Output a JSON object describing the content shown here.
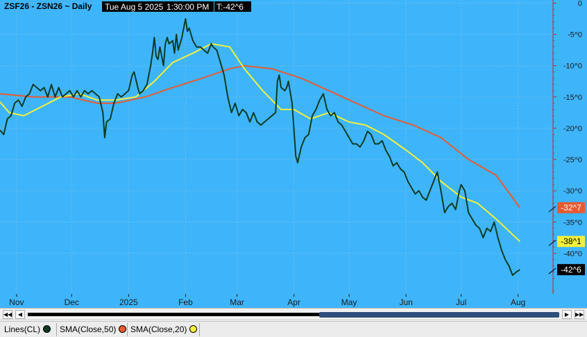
{
  "header": {
    "symbol": "ZSF26 - ZSN26 ~ Daily",
    "datetime": "Tue Aug 5 2025",
    "time": "1:30:00 PM",
    "last": "T:-42^6"
  },
  "colors": {
    "background": "#3eb5fb",
    "price_line": "#0c3a22",
    "sma50": "#e85a30",
    "sma20": "#f2f03c",
    "axis": "#cc2020",
    "axis_text": "#1a1a1a"
  },
  "scrollbar": {
    "left_icon": "double-left-arrow-icon",
    "right_icon": "double-right-arrow-icon"
  },
  "legend": [
    {
      "label": "Lines(CL)",
      "color": "#0c3a22"
    },
    {
      "label": "SMA(Close,50)",
      "color": "#e85a30"
    },
    {
      "label": "SMA(Close,20)",
      "color": "#f2f03c"
    }
  ],
  "chart_data": {
    "type": "line",
    "title": "ZSF26 - ZSN26 ~ Daily",
    "ylim": [
      -46.5,
      0.5
    ],
    "y_ticks": [
      {
        "value": 0,
        "label": "0"
      },
      {
        "value": -5,
        "label": "-5^0"
      },
      {
        "value": -10,
        "label": "-10^0"
      },
      {
        "value": -15,
        "label": "-15^0"
      },
      {
        "value": -20,
        "label": "-20^0"
      },
      {
        "value": -25,
        "label": "-25^0"
      },
      {
        "value": -30,
        "label": "-30^0"
      },
      {
        "value": -35,
        "label": "-35^0"
      },
      {
        "value": -40,
        "label": "-40^0"
      }
    ],
    "xlim": [
      "2024-10-23",
      "2025-08-20"
    ],
    "x_ticks": [
      {
        "date": "2024-11-01",
        "label": "Nov"
      },
      {
        "date": "2024-12-01",
        "label": "Dec"
      },
      {
        "date": "2025-01-01",
        "label": "2025"
      },
      {
        "date": "2025-02-01",
        "label": "Feb"
      },
      {
        "date": "2025-03-01",
        "label": "Mar"
      },
      {
        "date": "2025-04-01",
        "label": "Apr"
      },
      {
        "date": "2025-05-01",
        "label": "May"
      },
      {
        "date": "2025-06-01",
        "label": "Jun"
      },
      {
        "date": "2025-07-01",
        "label": "Jul"
      },
      {
        "date": "2025-08-01",
        "label": "Aug"
      }
    ],
    "series": [
      {
        "name": "Lines(CL)",
        "color": "#0c3a22",
        "last_label": "-42^6",
        "points": [
          [
            "2024-10-23",
            -20.3
          ],
          [
            "2024-10-25",
            -21.0
          ],
          [
            "2024-10-27",
            -18.5
          ],
          [
            "2024-10-29",
            -18.0
          ],
          [
            "2024-10-31",
            -16.0
          ],
          [
            "2024-11-02",
            -15.5
          ],
          [
            "2024-11-04",
            -16.5
          ],
          [
            "2024-11-06",
            -15.0
          ],
          [
            "2024-11-08",
            -14.5
          ],
          [
            "2024-11-10",
            -13.0
          ],
          [
            "2024-11-12",
            -13.5
          ],
          [
            "2024-11-14",
            -14.0
          ],
          [
            "2024-11-16",
            -13.5
          ],
          [
            "2024-11-18",
            -15.0
          ],
          [
            "2024-11-20",
            -13.0
          ],
          [
            "2024-11-22",
            -15.0
          ],
          [
            "2024-11-24",
            -13.5
          ],
          [
            "2024-11-26",
            -15.0
          ],
          [
            "2024-11-28",
            -14.5
          ],
          [
            "2024-11-30",
            -14.0
          ],
          [
            "2024-12-02",
            -15.0
          ],
          [
            "2024-12-04",
            -14.0
          ],
          [
            "2024-12-06",
            -15.0
          ],
          [
            "2024-12-08",
            -14.0
          ],
          [
            "2024-12-10",
            -14.5
          ],
          [
            "2024-12-12",
            -14.0
          ],
          [
            "2024-12-14",
            -14.5
          ],
          [
            "2024-12-16",
            -15.0
          ],
          [
            "2024-12-18",
            -17.5
          ],
          [
            "2024-12-19",
            -21.5
          ],
          [
            "2024-12-20",
            -19.0
          ],
          [
            "2024-12-22",
            -18.5
          ],
          [
            "2024-12-24",
            -16.0
          ],
          [
            "2024-12-26",
            -14.5
          ],
          [
            "2024-12-28",
            -15.0
          ],
          [
            "2024-12-30",
            -14.5
          ],
          [
            "2025-01-01",
            -14.0
          ],
          [
            "2025-01-03",
            -11.5
          ],
          [
            "2025-01-04",
            -11.0
          ],
          [
            "2025-01-06",
            -13.5
          ],
          [
            "2025-01-07",
            -14.5
          ],
          [
            "2025-01-09",
            -14.0
          ],
          [
            "2025-01-11",
            -13.0
          ],
          [
            "2025-01-13",
            -10.0
          ],
          [
            "2025-01-14",
            -8.0
          ],
          [
            "2025-01-15",
            -5.5
          ],
          [
            "2025-01-16",
            -8.5
          ],
          [
            "2025-01-17",
            -9.0
          ],
          [
            "2025-01-18",
            -7.0
          ],
          [
            "2025-01-20",
            -10.0
          ],
          [
            "2025-01-21",
            -6.5
          ],
          [
            "2025-01-22",
            -5.5
          ],
          [
            "2025-01-23",
            -6.5
          ],
          [
            "2025-01-25",
            -6.0
          ],
          [
            "2025-01-26",
            -8.0
          ],
          [
            "2025-01-27",
            -5.0
          ],
          [
            "2025-01-28",
            -7.5
          ],
          [
            "2025-01-30",
            -5.5
          ],
          [
            "2025-02-01",
            -2.5
          ],
          [
            "2025-02-02",
            -4.5
          ],
          [
            "2025-02-03",
            -4.0
          ],
          [
            "2025-02-05",
            -6.0
          ],
          [
            "2025-02-07",
            -7.0
          ],
          [
            "2025-02-09",
            -7.0
          ],
          [
            "2025-02-11",
            -7.5
          ],
          [
            "2025-02-13",
            -8.0
          ],
          [
            "2025-02-15",
            -6.5
          ],
          [
            "2025-02-16",
            -7.0
          ],
          [
            "2025-02-18",
            -7.5
          ],
          [
            "2025-02-20",
            -9.5
          ],
          [
            "2025-02-22",
            -11.5
          ],
          [
            "2025-02-24",
            -15.0
          ],
          [
            "2025-02-26",
            -17.5
          ],
          [
            "2025-02-28",
            -16.0
          ],
          [
            "2025-03-02",
            -18.0
          ],
          [
            "2025-03-04",
            -17.0
          ],
          [
            "2025-03-06",
            -17.5
          ],
          [
            "2025-03-08",
            -19.0
          ],
          [
            "2025-03-10",
            -17.5
          ],
          [
            "2025-03-12",
            -19.0
          ],
          [
            "2025-03-14",
            -19.5
          ],
          [
            "2025-03-16",
            -19.0
          ],
          [
            "2025-03-18",
            -18.5
          ],
          [
            "2025-03-20",
            -18.0
          ],
          [
            "2025-03-22",
            -17.5
          ],
          [
            "2025-03-23",
            -12.5
          ],
          [
            "2025-03-24",
            -11.5
          ],
          [
            "2025-03-25",
            -13.5
          ],
          [
            "2025-03-27",
            -14.0
          ],
          [
            "2025-03-28",
            -13.5
          ],
          [
            "2025-03-29",
            -12.5
          ],
          [
            "2025-03-31",
            -16.0
          ],
          [
            "2025-04-02",
            -24.5
          ],
          [
            "2025-04-03",
            -25.5
          ],
          [
            "2025-04-05",
            -23.0
          ],
          [
            "2025-04-07",
            -21.5
          ],
          [
            "2025-04-09",
            -21.0
          ],
          [
            "2025-04-11",
            -18.0
          ],
          [
            "2025-04-13",
            -17.0
          ],
          [
            "2025-04-15",
            -15.5
          ],
          [
            "2025-04-17",
            -14.5
          ],
          [
            "2025-04-19",
            -17.0
          ],
          [
            "2025-04-21",
            -18.0
          ],
          [
            "2025-04-23",
            -17.5
          ],
          [
            "2025-04-25",
            -19.0
          ],
          [
            "2025-04-27",
            -19.5
          ],
          [
            "2025-04-29",
            -20.5
          ],
          [
            "2025-05-01",
            -21.5
          ],
          [
            "2025-05-03",
            -22.5
          ],
          [
            "2025-05-05",
            -22.5
          ],
          [
            "2025-05-07",
            -23.0
          ],
          [
            "2025-05-09",
            -22.0
          ],
          [
            "2025-05-11",
            -20.5
          ],
          [
            "2025-05-13",
            -21.0
          ],
          [
            "2025-05-15",
            -22.5
          ],
          [
            "2025-05-17",
            -22.5
          ],
          [
            "2025-05-19",
            -22.0
          ],
          [
            "2025-05-21",
            -23.5
          ],
          [
            "2025-05-23",
            -24.5
          ],
          [
            "2025-05-25",
            -26.0
          ],
          [
            "2025-05-27",
            -25.5
          ],
          [
            "2025-05-29",
            -26.5
          ],
          [
            "2025-05-31",
            -27.0
          ],
          [
            "2025-06-02",
            -28.5
          ],
          [
            "2025-06-04",
            -29.5
          ],
          [
            "2025-06-06",
            -30.5
          ],
          [
            "2025-06-08",
            -30.0
          ],
          [
            "2025-06-10",
            -31.0
          ],
          [
            "2025-06-12",
            -31.5
          ],
          [
            "2025-06-14",
            -30.0
          ],
          [
            "2025-06-16",
            -28.5
          ],
          [
            "2025-06-18",
            -27.0
          ],
          [
            "2025-06-20",
            -30.0
          ],
          [
            "2025-06-22",
            -33.5
          ],
          [
            "2025-06-24",
            -32.5
          ],
          [
            "2025-06-26",
            -32.0
          ],
          [
            "2025-06-28",
            -33.0
          ],
          [
            "2025-06-30",
            -30.0
          ],
          [
            "2025-07-01",
            -29.0
          ],
          [
            "2025-07-03",
            -30.0
          ],
          [
            "2025-07-05",
            -33.5
          ],
          [
            "2025-07-07",
            -34.5
          ],
          [
            "2025-07-09",
            -35.5
          ],
          [
            "2025-07-11",
            -36.0
          ],
          [
            "2025-07-13",
            -37.5
          ],
          [
            "2025-07-15",
            -36.0
          ],
          [
            "2025-07-17",
            -36.5
          ],
          [
            "2025-07-19",
            -35.0
          ],
          [
            "2025-07-21",
            -37.5
          ],
          [
            "2025-07-23",
            -39.5
          ],
          [
            "2025-07-25",
            -41.0
          ],
          [
            "2025-07-27",
            -42.0
          ],
          [
            "2025-07-29",
            -43.5
          ],
          [
            "2025-07-31",
            -43.0
          ],
          [
            "2025-08-02",
            -42.6
          ]
        ]
      },
      {
        "name": "SMA(Close,50)",
        "color": "#e85a30",
        "last_label": "-32^7",
        "points": [
          [
            "2024-10-23",
            -14.5
          ],
          [
            "2024-11-10",
            -15.0
          ],
          [
            "2024-11-30",
            -15.0
          ],
          [
            "2024-12-15",
            -16.0
          ],
          [
            "2024-12-25",
            -16.0
          ],
          [
            "2025-01-10",
            -15.0
          ],
          [
            "2025-01-25",
            -13.5
          ],
          [
            "2025-02-10",
            -12.0
          ],
          [
            "2025-02-25",
            -10.5
          ],
          [
            "2025-03-05",
            -10.0
          ],
          [
            "2025-03-20",
            -10.5
          ],
          [
            "2025-04-05",
            -12.0
          ],
          [
            "2025-04-20",
            -14.0
          ],
          [
            "2025-05-05",
            -16.0
          ],
          [
            "2025-05-20",
            -18.0
          ],
          [
            "2025-06-05",
            -19.5
          ],
          [
            "2025-06-20",
            -21.5
          ],
          [
            "2025-07-05",
            -25.0
          ],
          [
            "2025-07-20",
            -27.5
          ],
          [
            "2025-08-02",
            -32.7
          ]
        ]
      },
      {
        "name": "SMA(Close,20)",
        "color": "#f2f03c",
        "last_label": "-38^1",
        "points": [
          [
            "2024-10-23",
            -15.8
          ],
          [
            "2024-10-28",
            -17.5
          ],
          [
            "2024-11-05",
            -18.0
          ],
          [
            "2024-11-15",
            -16.5
          ],
          [
            "2024-11-25",
            -15.0
          ],
          [
            "2024-12-05",
            -14.5
          ],
          [
            "2024-12-15",
            -15.5
          ],
          [
            "2024-12-25",
            -15.5
          ],
          [
            "2025-01-05",
            -15.0
          ],
          [
            "2025-01-15",
            -12.5
          ],
          [
            "2025-01-25",
            -9.5
          ],
          [
            "2025-02-05",
            -8.0
          ],
          [
            "2025-02-15",
            -6.5
          ],
          [
            "2025-02-25",
            -7.0
          ],
          [
            "2025-03-05",
            -10.5
          ],
          [
            "2025-03-15",
            -14.0
          ],
          [
            "2025-03-25",
            -17.0
          ],
          [
            "2025-04-01",
            -17.0
          ],
          [
            "2025-04-10",
            -18.5
          ],
          [
            "2025-04-20",
            -17.5
          ],
          [
            "2025-05-01",
            -19.0
          ],
          [
            "2025-05-10",
            -19.5
          ],
          [
            "2025-05-20",
            -21.0
          ],
          [
            "2025-06-01",
            -23.5
          ],
          [
            "2025-06-10",
            -25.5
          ],
          [
            "2025-06-20",
            -28.5
          ],
          [
            "2025-07-01",
            -31.0
          ],
          [
            "2025-07-10",
            -32.0
          ],
          [
            "2025-07-20",
            -34.5
          ],
          [
            "2025-08-02",
            -38.1
          ]
        ]
      }
    ]
  }
}
